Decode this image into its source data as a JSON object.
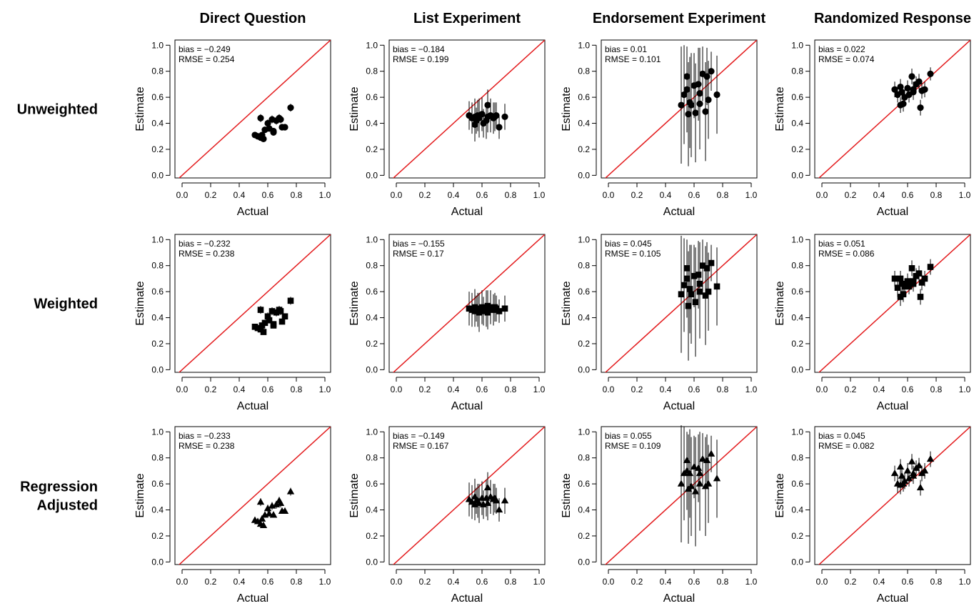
{
  "chart_data": {
    "type": "scatter",
    "col_titles": [
      "Direct Question",
      "List Experiment",
      "Endorsement Experiment",
      "Randomized Response"
    ],
    "row_titles": [
      [
        "Unweighted"
      ],
      [
        "Weighted"
      ],
      [
        "Regression",
        "Adjusted"
      ]
    ],
    "markers": [
      "circle",
      "square",
      "triangle"
    ],
    "xlabel": "Actual",
    "ylabel": "Estimate",
    "xlim": [
      -0.05,
      1.04
    ],
    "ylim": [
      -0.02,
      1.04
    ],
    "ticks": [
      "0.0",
      "0.2",
      "0.4",
      "0.6",
      "0.8",
      "1.0"
    ],
    "reference_line": {
      "type": "y = x",
      "color": "#e31a1c"
    },
    "point_color": "#000000",
    "actual": [
      0.51,
      0.53,
      0.55,
      0.55,
      0.56,
      0.57,
      0.58,
      0.6,
      0.61,
      0.63,
      0.64,
      0.64,
      0.66,
      0.68,
      0.69,
      0.7,
      0.72,
      0.76
    ],
    "panels": [
      {
        "row": 0,
        "col": 0,
        "bias": "bias = −0.249",
        "rmse": "RMSE = 0.254",
        "estimates": [
          0.31,
          0.3,
          0.44,
          0.29,
          0.31,
          0.28,
          0.35,
          0.4,
          0.36,
          0.43,
          0.33,
          0.34,
          0.42,
          0.44,
          0.43,
          0.37,
          0.37,
          0.52
        ],
        "err": [
          0.02,
          0.02,
          0.03,
          0.02,
          0.02,
          0.02,
          0.02,
          0.03,
          0.02,
          0.03,
          0.02,
          0.02,
          0.03,
          0.03,
          0.03,
          0.02,
          0.02,
          0.03
        ]
      },
      {
        "row": 0,
        "col": 1,
        "bias": "bias = −0.184",
        "rmse": "RMSE = 0.199",
        "estimates": [
          0.46,
          0.44,
          0.45,
          0.39,
          0.42,
          0.46,
          0.44,
          0.47,
          0.4,
          0.42,
          0.54,
          0.45,
          0.46,
          0.44,
          0.45,
          0.46,
          0.37,
          0.45
        ],
        "err": [
          0.11,
          0.12,
          0.14,
          0.13,
          0.1,
          0.12,
          0.15,
          0.13,
          0.11,
          0.14,
          0.12,
          0.12,
          0.13,
          0.12,
          0.11,
          0.1,
          0.09,
          0.1
        ]
      },
      {
        "row": 0,
        "col": 2,
        "bias": "bias = 0.01",
        "rmse": "RMSE = 0.101",
        "estimates": [
          0.54,
          0.62,
          0.66,
          0.76,
          0.47,
          0.56,
          0.54,
          0.69,
          0.48,
          0.7,
          0.63,
          0.55,
          0.78,
          0.49,
          0.76,
          0.58,
          0.8,
          0.62
        ],
        "err": [
          0.45,
          0.38,
          0.33,
          0.22,
          0.4,
          0.35,
          0.4,
          0.25,
          0.38,
          0.28,
          0.35,
          0.35,
          0.21,
          0.38,
          0.22,
          0.3,
          0.15,
          0.3
        ]
      },
      {
        "row": 0,
        "col": 3,
        "bias": "bias = 0.022",
        "rmse": "RMSE = 0.074",
        "estimates": [
          0.66,
          0.62,
          0.68,
          0.54,
          0.64,
          0.55,
          0.6,
          0.67,
          0.62,
          0.76,
          0.64,
          0.66,
          0.7,
          0.72,
          0.52,
          0.65,
          0.66,
          0.78
        ],
        "err": [
          0.06,
          0.06,
          0.06,
          0.06,
          0.06,
          0.06,
          0.06,
          0.06,
          0.06,
          0.06,
          0.06,
          0.06,
          0.06,
          0.06,
          0.06,
          0.06,
          0.06,
          0.05
        ]
      },
      {
        "row": 1,
        "col": 0,
        "bias": "bias = −0.232",
        "rmse": "RMSE = 0.238",
        "estimates": [
          0.33,
          0.32,
          0.46,
          0.31,
          0.34,
          0.29,
          0.36,
          0.41,
          0.38,
          0.45,
          0.35,
          0.34,
          0.44,
          0.46,
          0.45,
          0.37,
          0.41,
          0.53
        ],
        "err": [
          0.02,
          0.02,
          0.03,
          0.02,
          0.02,
          0.02,
          0.02,
          0.03,
          0.02,
          0.03,
          0.02,
          0.02,
          0.03,
          0.03,
          0.03,
          0.02,
          0.02,
          0.03
        ]
      },
      {
        "row": 1,
        "col": 1,
        "bias": "bias = −0.155",
        "rmse": "RMSE = 0.17",
        "estimates": [
          0.47,
          0.46,
          0.48,
          0.45,
          0.47,
          0.46,
          0.44,
          0.48,
          0.45,
          0.47,
          0.49,
          0.44,
          0.48,
          0.46,
          0.48,
          0.47,
          0.45,
          0.47
        ],
        "err": [
          0.13,
          0.13,
          0.14,
          0.12,
          0.1,
          0.13,
          0.15,
          0.13,
          0.11,
          0.14,
          0.12,
          0.13,
          0.13,
          0.12,
          0.11,
          0.1,
          0.09,
          0.1
        ]
      },
      {
        "row": 1,
        "col": 2,
        "bias": "bias = 0.045",
        "rmse": "RMSE = 0.105",
        "estimates": [
          0.58,
          0.65,
          0.7,
          0.78,
          0.49,
          0.62,
          0.58,
          0.72,
          0.52,
          0.73,
          0.66,
          0.6,
          0.8,
          0.57,
          0.78,
          0.6,
          0.82,
          0.64
        ],
        "err": [
          0.45,
          0.36,
          0.3,
          0.2,
          0.42,
          0.34,
          0.38,
          0.24,
          0.42,
          0.26,
          0.32,
          0.36,
          0.2,
          0.38,
          0.2,
          0.3,
          0.14,
          0.3
        ]
      },
      {
        "row": 1,
        "col": 3,
        "bias": "bias = 0.051",
        "rmse": "RMSE = 0.086",
        "estimates": [
          0.7,
          0.63,
          0.7,
          0.56,
          0.66,
          0.58,
          0.64,
          0.68,
          0.64,
          0.78,
          0.66,
          0.68,
          0.72,
          0.74,
          0.56,
          0.67,
          0.7,
          0.79
        ],
        "err": [
          0.06,
          0.07,
          0.06,
          0.07,
          0.06,
          0.06,
          0.06,
          0.06,
          0.06,
          0.06,
          0.06,
          0.06,
          0.06,
          0.06,
          0.06,
          0.06,
          0.06,
          0.06
        ]
      },
      {
        "row": 2,
        "col": 0,
        "bias": "bias = −0.233",
        "rmse": "RMSE = 0.238",
        "estimates": [
          0.32,
          0.31,
          0.46,
          0.29,
          0.33,
          0.28,
          0.36,
          0.41,
          0.37,
          0.43,
          0.36,
          0.36,
          0.44,
          0.47,
          0.45,
          0.39,
          0.39,
          0.54
        ],
        "err": [
          0.02,
          0.02,
          0.03,
          0.02,
          0.02,
          0.02,
          0.02,
          0.03,
          0.02,
          0.03,
          0.02,
          0.02,
          0.03,
          0.03,
          0.03,
          0.02,
          0.02,
          0.03
        ]
      },
      {
        "row": 2,
        "col": 1,
        "bias": "bias = −0.149",
        "rmse": "RMSE = 0.167",
        "estimates": [
          0.48,
          0.46,
          0.5,
          0.44,
          0.47,
          0.47,
          0.45,
          0.49,
          0.44,
          0.49,
          0.57,
          0.45,
          0.5,
          0.48,
          0.49,
          0.47,
          0.4,
          0.47
        ],
        "err": [
          0.13,
          0.13,
          0.14,
          0.12,
          0.1,
          0.13,
          0.15,
          0.13,
          0.11,
          0.14,
          0.12,
          0.13,
          0.13,
          0.12,
          0.11,
          0.1,
          0.09,
          0.1
        ]
      },
      {
        "row": 2,
        "col": 2,
        "bias": "bias = 0.055",
        "rmse": "RMSE = 0.109",
        "estimates": [
          0.6,
          0.68,
          0.7,
          0.78,
          0.56,
          0.68,
          0.58,
          0.73,
          0.54,
          0.72,
          0.68,
          0.6,
          0.79,
          0.58,
          0.78,
          0.6,
          0.83,
          0.64
        ],
        "err": [
          0.45,
          0.36,
          0.3,
          0.2,
          0.42,
          0.34,
          0.38,
          0.24,
          0.42,
          0.26,
          0.32,
          0.36,
          0.2,
          0.38,
          0.2,
          0.3,
          0.14,
          0.3
        ]
      },
      {
        "row": 2,
        "col": 3,
        "bias": "bias = 0.045",
        "rmse": "RMSE = 0.082",
        "estimates": [
          0.68,
          0.6,
          0.73,
          0.59,
          0.66,
          0.6,
          0.62,
          0.7,
          0.64,
          0.77,
          0.66,
          0.68,
          0.72,
          0.74,
          0.57,
          0.68,
          0.7,
          0.79
        ],
        "err": [
          0.06,
          0.07,
          0.06,
          0.07,
          0.06,
          0.06,
          0.06,
          0.06,
          0.06,
          0.06,
          0.06,
          0.06,
          0.06,
          0.06,
          0.06,
          0.06,
          0.06,
          0.06
        ]
      }
    ]
  }
}
